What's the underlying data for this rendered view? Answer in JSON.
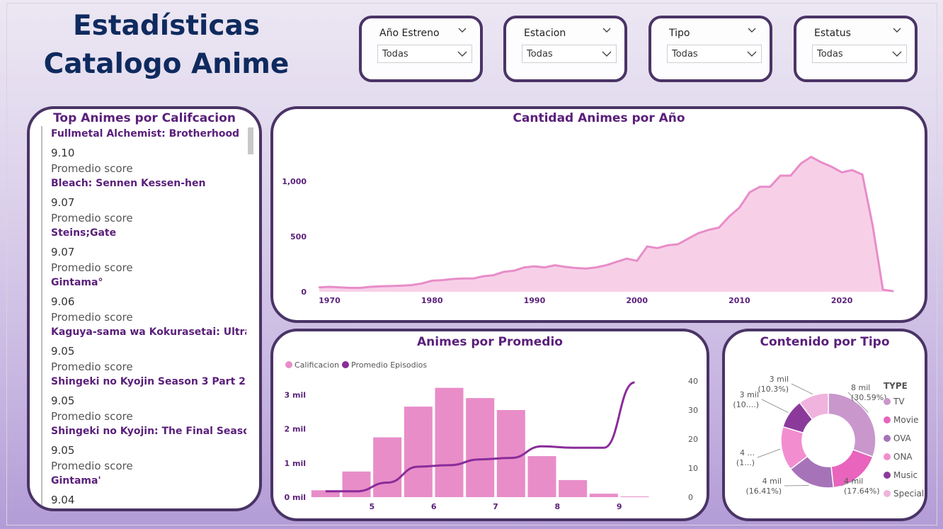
{
  "header": {
    "title_line1": "Estadísticas",
    "title_line2": "Catalogo Anime"
  },
  "slicers": [
    {
      "label": "Año Estreno",
      "value": "Todas"
    },
    {
      "label": "Estacion",
      "value": "Todas"
    },
    {
      "label": "Tipo",
      "value": "Todas"
    },
    {
      "label": "Estatus",
      "value": "Todas"
    }
  ],
  "top": {
    "title": "Top Animes por Califcacion",
    "items": [
      {
        "name": "Fullmetal Alchemist: Brotherhood",
        "score": "9.10",
        "sub": "Promedio score"
      },
      {
        "name": "Bleach: Sennen Kessen-hen",
        "score": "9.07",
        "sub": "Promedio score"
      },
      {
        "name": "Steins;Gate",
        "score": "9.07",
        "sub": "Promedio score"
      },
      {
        "name": "Gintama°",
        "score": "9.06",
        "sub": "Promedio score"
      },
      {
        "name": "Kaguya-sama wa Kokurasetai: Ultra Rom...",
        "score": "9.05",
        "sub": "Promedio score"
      },
      {
        "name": "Shingeki no Kyojin Season 3 Part 2",
        "score": "9.05",
        "sub": "Promedio score"
      },
      {
        "name": "Shingeki no Kyojin: The Final Season - Ka...",
        "score": "9.05",
        "sub": "Promedio score"
      },
      {
        "name": "Gintama'",
        "score": "9.04",
        "sub": ""
      }
    ]
  },
  "colors": {
    "accent": "#5a1f7a",
    "border": "#4a3466",
    "pink": "#e88dc8",
    "area_fill": "#f7d0e8",
    "line_purple": "#8a2c9a"
  },
  "chart_data": [
    {
      "type": "area",
      "title": "Cantidad Animes por Año",
      "xlabel": "",
      "ylabel": "",
      "x_ticks": [
        "1970",
        "1980",
        "1990",
        "2000",
        "2010",
        "2020"
      ],
      "y_ticks": [
        "0",
        "500",
        "1,000"
      ],
      "xlim": [
        1969,
        2026
      ],
      "ylim": [
        0,
        1300
      ],
      "x": [
        1969,
        1970,
        1971,
        1972,
        1973,
        1974,
        1975,
        1976,
        1977,
        1978,
        1979,
        1980,
        1981,
        1982,
        1983,
        1984,
        1985,
        1986,
        1987,
        1988,
        1989,
        1990,
        1991,
        1992,
        1993,
        1994,
        1995,
        1996,
        1997,
        1998,
        1999,
        2000,
        2001,
        2002,
        2003,
        2004,
        2005,
        2006,
        2007,
        2008,
        2009,
        2010,
        2011,
        2012,
        2013,
        2014,
        2015,
        2016,
        2017,
        2018,
        2019,
        2020,
        2021,
        2022,
        2023,
        2024,
        2025
      ],
      "values": [
        40,
        45,
        40,
        35,
        35,
        45,
        50,
        52,
        55,
        60,
        75,
        100,
        105,
        115,
        120,
        120,
        140,
        150,
        180,
        190,
        220,
        230,
        220,
        240,
        225,
        215,
        210,
        220,
        240,
        270,
        300,
        280,
        410,
        395,
        420,
        430,
        480,
        530,
        560,
        580,
        680,
        760,
        900,
        950,
        950,
        1050,
        1050,
        1160,
        1220,
        1170,
        1130,
        1080,
        1100,
        1060,
        600,
        20,
        5
      ]
    },
    {
      "type": "bar",
      "title": "Animes por Promedio",
      "legend": [
        "Calificacion",
        "Promedio Episodios"
      ],
      "x_ticks": [
        "5",
        "6",
        "7",
        "8",
        "9"
      ],
      "y_ticks": [
        "0 mil",
        "1 mil",
        "2 mil",
        "3 mil"
      ],
      "y2_ticks": [
        "0",
        "10",
        "20",
        "30",
        "40"
      ],
      "xlim": [
        4,
        10
      ],
      "ylim": [
        0,
        3.4
      ],
      "y2lim": [
        0,
        40
      ],
      "series": [
        {
          "name": "Calificacion",
          "x": [
            4.25,
            4.75,
            5.25,
            5.75,
            6.25,
            6.75,
            7.25,
            7.75,
            8.25,
            8.75,
            9.25
          ],
          "values": [
            0.2,
            0.75,
            1.75,
            2.65,
            3.2,
            2.9,
            2.55,
            1.2,
            0.5,
            0.1,
            0.02
          ]
        },
        {
          "name": "Promedio Episodios",
          "x": [
            4.25,
            4.75,
            5.25,
            5.75,
            6.25,
            6.75,
            7.25,
            7.75,
            8.25,
            8.75,
            9.25
          ],
          "values": [
            2,
            2,
            5,
            10.5,
            11,
            13,
            13.5,
            17.5,
            17,
            17,
            39.5
          ]
        }
      ]
    },
    {
      "type": "pie",
      "title": "Contenido por Tipo",
      "legend_title": "TYPE",
      "categories": [
        "TV",
        "Movie",
        "OVA",
        "ONA",
        "Music",
        "Special"
      ],
      "values": [
        30.59,
        17.64,
        16.41,
        15.0,
        10.0,
        10.3
      ],
      "colors": [
        "#c997cc",
        "#e864bd",
        "#a673b9",
        "#f28ecf",
        "#8b3a9c",
        "#f0b3dd"
      ],
      "labels": [
        "8 mil|(30.59%)",
        "4 mil|(17.64%)",
        "4 mil|(16.41%)",
        "4 ...|(1...)",
        "3 mil|(10....)",
        "3 mil|(10.3%)"
      ]
    }
  ]
}
